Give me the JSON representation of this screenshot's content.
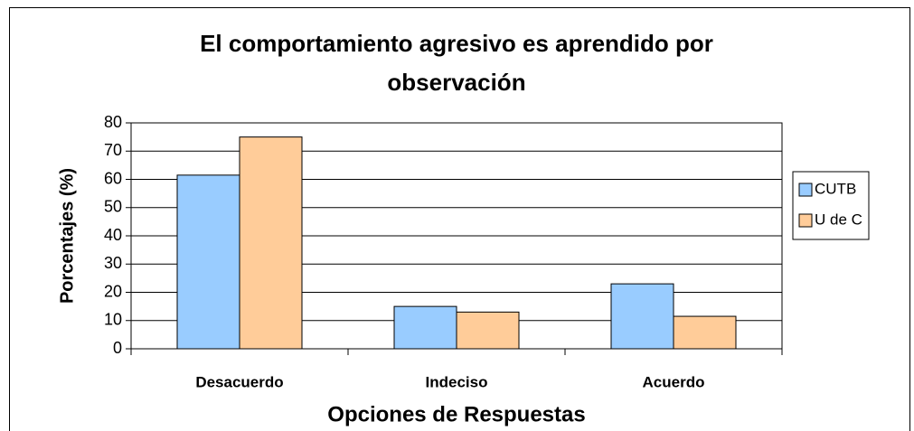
{
  "chart_data": {
    "type": "bar",
    "title": [
      "El comportamiento agresivo es aprendido por",
      "observación"
    ],
    "x_label": "Opciones de Respuestas",
    "y_label": "Porcentajes (%)",
    "categories": [
      "Desacuerdo",
      "Indeciso",
      "Acuerdo"
    ],
    "series": [
      {
        "name": "CUTB",
        "color": "#99ccff",
        "values": [
          61.5,
          15,
          23
        ]
      },
      {
        "name": "U de C",
        "color": "#ffcc99",
        "values": [
          75,
          13,
          11.5
        ]
      }
    ],
    "ylim": [
      0,
      80
    ],
    "yticks": [
      0,
      10,
      20,
      30,
      40,
      50,
      60,
      70,
      80
    ],
    "grid": true,
    "legend": "right"
  }
}
